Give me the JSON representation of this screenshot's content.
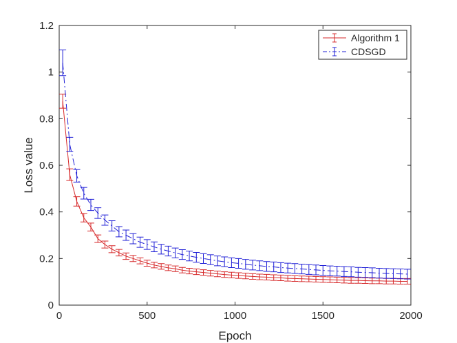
{
  "chart_data": {
    "type": "line",
    "title": "",
    "xlabel": "Epoch",
    "ylabel": "Loss value",
    "xlim": [
      0,
      2000
    ],
    "ylim": [
      0,
      1.2
    ],
    "xticks": [
      0,
      500,
      1000,
      1500,
      2000
    ],
    "yticks": [
      0,
      0.2,
      0.4,
      0.6,
      0.8,
      1,
      1.2
    ],
    "xtick_labels": [
      "0",
      "500",
      "1000",
      "1500",
      "2000"
    ],
    "ytick_labels": [
      "0",
      "0.2",
      "0.4",
      "0.6",
      "0.8",
      "1",
      "1.2"
    ],
    "grid": false,
    "legend_position": "top-right",
    "x": [
      20,
      60,
      100,
      140,
      180,
      220,
      260,
      300,
      340,
      380,
      420,
      460,
      500,
      540,
      580,
      620,
      660,
      700,
      740,
      780,
      820,
      860,
      900,
      940,
      980,
      1020,
      1060,
      1100,
      1140,
      1180,
      1220,
      1260,
      1300,
      1340,
      1380,
      1420,
      1460,
      1500,
      1540,
      1580,
      1620,
      1660,
      1700,
      1740,
      1780,
      1820,
      1860,
      1900,
      1940,
      1980
    ],
    "series": [
      {
        "name": "Algorithm 1",
        "color": "#d62728",
        "dash": "solid",
        "values": [
          0.875,
          0.56,
          0.445,
          0.375,
          0.335,
          0.285,
          0.26,
          0.24,
          0.225,
          0.21,
          0.2,
          0.19,
          0.18,
          0.172,
          0.166,
          0.16,
          0.156,
          0.15,
          0.146,
          0.143,
          0.14,
          0.137,
          0.134,
          0.131,
          0.129,
          0.127,
          0.125,
          0.123,
          0.121,
          0.12,
          0.118,
          0.117,
          0.115,
          0.114,
          0.113,
          0.112,
          0.111,
          0.11,
          0.109,
          0.108,
          0.107,
          0.106,
          0.106,
          0.105,
          0.104,
          0.104,
          0.103,
          0.103,
          0.102,
          0.102
        ],
        "errors": [
          0.03,
          0.025,
          0.02,
          0.018,
          0.017,
          0.016,
          0.015,
          0.015,
          0.014,
          0.014,
          0.013,
          0.013,
          0.013,
          0.012,
          0.012,
          0.012,
          0.012,
          0.012,
          0.012,
          0.012,
          0.012,
          0.012,
          0.012,
          0.012,
          0.012,
          0.012,
          0.012,
          0.012,
          0.012,
          0.012,
          0.012,
          0.012,
          0.012,
          0.012,
          0.012,
          0.012,
          0.012,
          0.012,
          0.012,
          0.012,
          0.012,
          0.012,
          0.012,
          0.012,
          0.012,
          0.012,
          0.012,
          0.012,
          0.012,
          0.012
        ]
      },
      {
        "name": "CDSGD",
        "color": "#1f1fd6",
        "dash": "dashdot",
        "values": [
          1.04,
          0.69,
          0.555,
          0.48,
          0.43,
          0.395,
          0.365,
          0.34,
          0.315,
          0.3,
          0.285,
          0.27,
          0.26,
          0.25,
          0.24,
          0.232,
          0.224,
          0.217,
          0.211,
          0.205,
          0.2,
          0.195,
          0.19,
          0.186,
          0.182,
          0.179,
          0.175,
          0.172,
          0.169,
          0.166,
          0.164,
          0.161,
          0.159,
          0.157,
          0.155,
          0.153,
          0.151,
          0.149,
          0.147,
          0.146,
          0.144,
          0.143,
          0.141,
          0.14,
          0.139,
          0.137,
          0.136,
          0.135,
          0.134,
          0.133
        ],
        "errors": [
          0.055,
          0.03,
          0.027,
          0.025,
          0.024,
          0.023,
          0.022,
          0.022,
          0.022,
          0.022,
          0.022,
          0.022,
          0.021,
          0.021,
          0.021,
          0.021,
          0.021,
          0.021,
          0.021,
          0.021,
          0.021,
          0.021,
          0.021,
          0.021,
          0.021,
          0.021,
          0.021,
          0.021,
          0.021,
          0.021,
          0.021,
          0.021,
          0.021,
          0.021,
          0.021,
          0.021,
          0.021,
          0.021,
          0.021,
          0.021,
          0.021,
          0.021,
          0.021,
          0.021,
          0.021,
          0.021,
          0.021,
          0.021,
          0.021,
          0.021
        ]
      }
    ]
  }
}
